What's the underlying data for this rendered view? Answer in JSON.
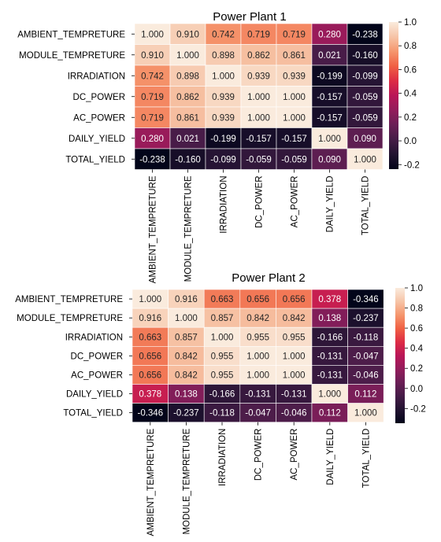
{
  "chart_data": [
    {
      "type": "heatmap",
      "title": "Power Plant 1",
      "row_labels": [
        "AMBIENT_TEMPRETURE",
        "MODULE_TEMPRETURE",
        "IRRADIATION",
        "DC_POWER",
        "AC_POWER",
        "DAILY_YIELD",
        "TOTAL_YIELD"
      ],
      "col_labels": [
        "AMBIENT_TEMPRETURE",
        "MODULE_TEMPRETURE",
        "IRRADIATION",
        "DC_POWER",
        "AC_POWER",
        "DAILY_YIELD",
        "TOTAL_YIELD"
      ],
      "values": [
        [
          1.0,
          0.91,
          0.742,
          0.719,
          0.719,
          0.28,
          -0.238
        ],
        [
          0.91,
          1.0,
          0.898,
          0.862,
          0.861,
          0.021,
          -0.16
        ],
        [
          0.742,
          0.898,
          1.0,
          0.939,
          0.939,
          -0.199,
          -0.099
        ],
        [
          0.719,
          0.862,
          0.939,
          1.0,
          1.0,
          -0.157,
          -0.059
        ],
        [
          0.719,
          0.861,
          0.939,
          1.0,
          1.0,
          -0.157,
          -0.059
        ],
        [
          0.28,
          0.021,
          -0.199,
          -0.157,
          -0.157,
          1.0,
          0.09
        ],
        [
          -0.238,
          -0.16,
          -0.099,
          -0.059,
          -0.059,
          0.09,
          1.0
        ]
      ],
      "colorbar": {
        "range": [
          -0.238,
          1.0
        ],
        "ticks": [
          1.0,
          0.8,
          0.6,
          0.4,
          0.2,
          0.0,
          -0.2
        ],
        "tick_labels": [
          "1.0",
          "0.8",
          "0.6",
          "0.4",
          "0.2",
          "0.0",
          "-0.2"
        ]
      },
      "colormap": "rocket",
      "value_format": "3 decimals"
    },
    {
      "type": "heatmap",
      "title": "Power Plant 2",
      "row_labels": [
        "AMBIENT_TEMPRETURE",
        "MODULE_TEMPRETURE",
        "IRRADIATION",
        "DC_POWER",
        "AC_POWER",
        "DAILY_YIELD",
        "TOTAL_YIELD"
      ],
      "col_labels": [
        "AMBIENT_TEMPRETURE",
        "MODULE_TEMPRETURE",
        "IRRADIATION",
        "DC_POWER",
        "AC_POWER",
        "DAILY_YIELD",
        "TOTAL_YIELD"
      ],
      "values": [
        [
          1.0,
          0.916,
          0.663,
          0.656,
          0.656,
          0.378,
          -0.346
        ],
        [
          0.916,
          1.0,
          0.857,
          0.842,
          0.842,
          0.138,
          -0.237
        ],
        [
          0.663,
          0.857,
          1.0,
          0.955,
          0.955,
          -0.166,
          -0.118
        ],
        [
          0.656,
          0.842,
          0.955,
          1.0,
          1.0,
          -0.131,
          -0.047
        ],
        [
          0.656,
          0.842,
          0.955,
          1.0,
          1.0,
          -0.131,
          -0.046
        ],
        [
          0.378,
          0.138,
          -0.166,
          -0.131,
          -0.131,
          1.0,
          0.112
        ],
        [
          -0.346,
          -0.237,
          -0.118,
          -0.047,
          -0.046,
          0.112,
          1.0
        ]
      ],
      "colorbar": {
        "range": [
          -0.346,
          1.0
        ],
        "ticks": [
          1.0,
          0.8,
          0.6,
          0.4,
          0.2,
          0.0,
          -0.2
        ],
        "tick_labels": [
          "1.0",
          "0.8",
          "0.6",
          "0.4",
          "0.2",
          "0.0",
          "-0.2"
        ]
      },
      "colormap": "rocket",
      "value_format": "3 decimals"
    }
  ]
}
